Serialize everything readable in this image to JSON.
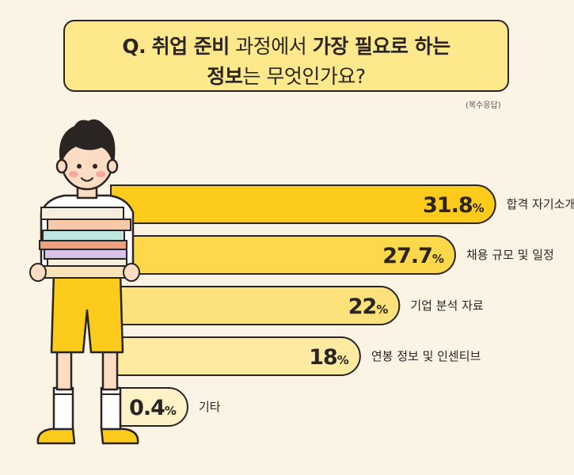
{
  "title": {
    "line1_q": "Q.",
    "line1_bold": "취업 준비",
    "line1_light": "과정에서",
    "line1_bold2": "가장 필요로 하는",
    "line2_bold": "정보",
    "line2_light": "는 무엇인가요?"
  },
  "note": "(복수응답)",
  "chart_data": {
    "type": "bar",
    "orientation": "horizontal",
    "categories": [
      "합격 자기소개서 및 스펙",
      "채용 규모 및 일정",
      "기업 분석 자료",
      "연봉 정보 및 인센티브",
      "기타"
    ],
    "values": [
      31.8,
      27.7,
      22,
      18,
      0.4
    ],
    "value_labels": [
      "31.8",
      "27.7",
      "22",
      "18",
      "0.4"
    ],
    "unit": "%",
    "bar_colors": [
      "#FCCB1B",
      "#FDD84B",
      "#FDE27B",
      "#FEEAA0",
      "#FEF2C8"
    ]
  }
}
